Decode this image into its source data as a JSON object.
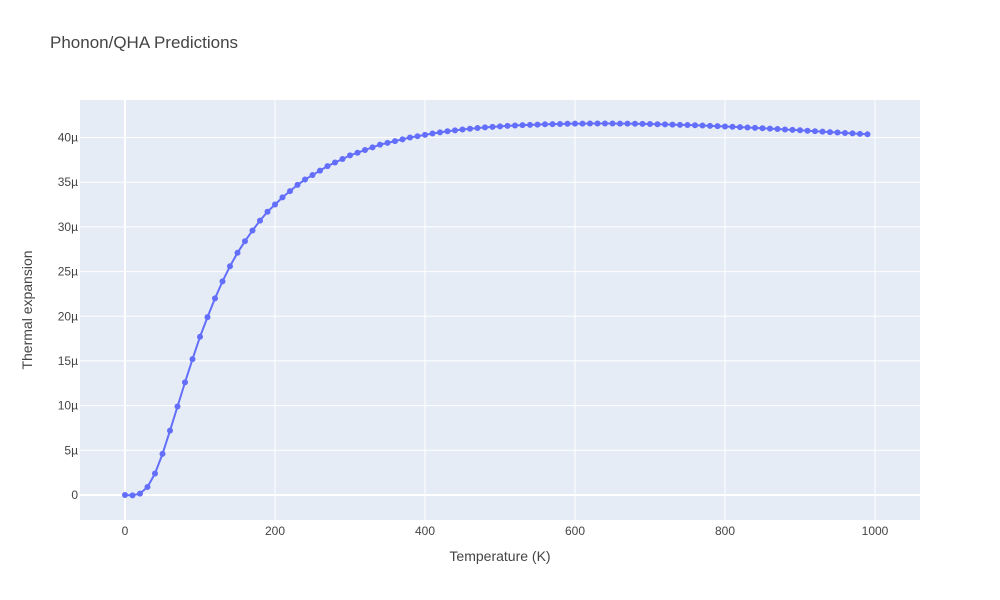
{
  "chart_data": {
    "type": "line",
    "title": "Phonon/QHA Predictions",
    "xlabel": "Temperature (K)",
    "ylabel": "Thermal expansion",
    "xlim": [
      -60,
      1060
    ],
    "ylim": [
      -2.8e-06,
      4.42e-05
    ],
    "x_ticks": [
      0,
      200,
      400,
      600,
      800,
      1000
    ],
    "x_tick_labels": [
      "0",
      "200",
      "400",
      "600",
      "800",
      "1000"
    ],
    "y_ticks": [
      0,
      5e-06,
      1e-05,
      1.5e-05,
      2e-05,
      2.5e-05,
      3e-05,
      3.5e-05,
      4e-05
    ],
    "y_tick_labels": [
      "0",
      "5µ",
      "10µ",
      "15µ",
      "20µ",
      "25µ",
      "30µ",
      "35µ",
      "40µ"
    ],
    "grid": true,
    "series": [
      {
        "mode": "lines+markers",
        "color": "#636efa",
        "x": [
          0,
          10,
          20,
          30,
          40,
          50,
          60,
          70,
          80,
          90,
          100,
          110,
          120,
          130,
          140,
          150,
          160,
          170,
          180,
          190,
          200,
          210,
          220,
          230,
          240,
          250,
          260,
          270,
          280,
          290,
          300,
          310,
          320,
          330,
          340,
          350,
          360,
          370,
          380,
          390,
          400,
          410,
          420,
          430,
          440,
          450,
          460,
          470,
          480,
          490,
          500,
          510,
          520,
          530,
          540,
          550,
          560,
          570,
          580,
          590,
          600,
          610,
          620,
          630,
          640,
          650,
          660,
          670,
          680,
          690,
          700,
          710,
          720,
          730,
          740,
          750,
          760,
          770,
          780,
          790,
          800,
          810,
          820,
          830,
          840,
          850,
          860,
          870,
          880,
          890,
          900,
          910,
          920,
          930,
          940,
          950,
          960,
          970,
          980,
          990
        ],
        "y": [
          0,
          -5e-08,
          1.5e-07,
          9e-07,
          2.4e-06,
          4.6e-06,
          7.2e-06,
          9.9e-06,
          1.26e-05,
          1.52e-05,
          1.77e-05,
          1.99e-05,
          2.2e-05,
          2.39e-05,
          2.56e-05,
          2.71e-05,
          2.84e-05,
          2.96e-05,
          3.07e-05,
          3.17e-05,
          3.25e-05,
          3.33e-05,
          3.4e-05,
          3.47e-05,
          3.53e-05,
          3.58e-05,
          3.63e-05,
          3.68e-05,
          3.72e-05,
          3.76e-05,
          3.8e-05,
          3.83e-05,
          3.86e-05,
          3.89e-05,
          3.92e-05,
          3.94e-05,
          3.96e-05,
          3.98e-05,
          4e-05,
          4.015e-05,
          4.03e-05,
          4.045e-05,
          4.058e-05,
          4.07e-05,
          4.08e-05,
          4.09e-05,
          4.098e-05,
          4.106e-05,
          4.113e-05,
          4.119e-05,
          4.125e-05,
          4.13e-05,
          4.135e-05,
          4.139e-05,
          4.142e-05,
          4.145e-05,
          4.148e-05,
          4.15e-05,
          4.152e-05,
          4.154e-05,
          4.155e-05,
          4.156e-05,
          4.157e-05,
          4.157e-05,
          4.157e-05,
          4.157e-05,
          4.156e-05,
          4.155e-05,
          4.154e-05,
          4.153e-05,
          4.151e-05,
          4.149e-05,
          4.147e-05,
          4.145e-05,
          4.142e-05,
          4.14e-05,
          4.137e-05,
          4.134e-05,
          4.131e-05,
          4.127e-05,
          4.124e-05,
          4.12e-05,
          4.116e-05,
          4.112e-05,
          4.108e-05,
          4.104e-05,
          4.1e-05,
          4.095e-05,
          4.09e-05,
          4.086e-05,
          4.081e-05,
          4.076e-05,
          4.071e-05,
          4.066e-05,
          4.061e-05,
          4.056e-05,
          4.051e-05,
          4.046e-05,
          4.041e-05,
          4.036e-05
        ]
      }
    ]
  }
}
